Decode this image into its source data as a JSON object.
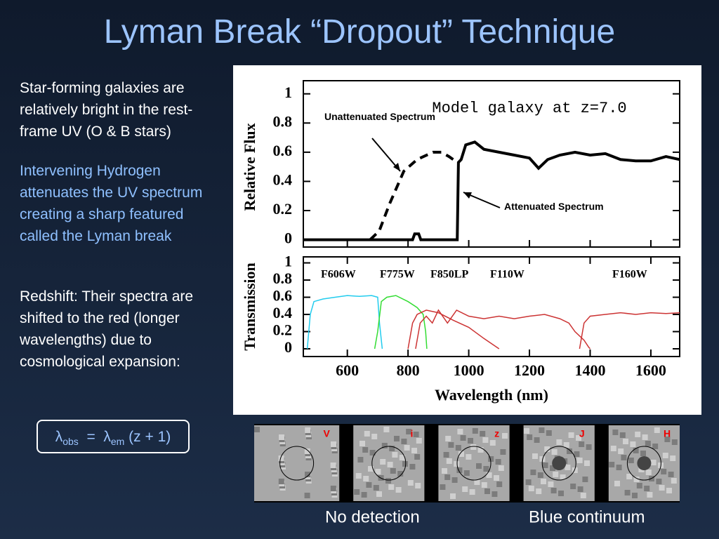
{
  "title": "Lyman Break “Dropout” Technique",
  "paragraphs": [
    "Star-forming galaxies are relatively bright in the rest-frame UV (O & B stars)",
    "Intervening Hydrogen attenuates the UV spectrum creating a sharp featured called the Lyman break",
    "Redshift:  Their spectra are shifted to the red (longer wavelengths) due to cosmological expansion:"
  ],
  "equation": [
    "λ",
    "obs",
    "  =  λ",
    "em",
    " (z + 1)"
  ],
  "chart_data": [
    {
      "type": "line",
      "title": "Model galaxy at z=7.0",
      "ylabel": "Relative Flux",
      "xlim": [
        455,
        1695
      ],
      "ylim": [
        -0.05,
        1.09
      ],
      "yticks": [
        0,
        0.2,
        0.4,
        0.6,
        0.8,
        1
      ],
      "annotations": [
        "Unattenuated Spectrum",
        "Attenuated Spectrum"
      ],
      "series": [
        {
          "color": "#000000",
          "dashed": false,
          "x": [
            455,
            815,
            822,
            835,
            842,
            962,
            966,
            975,
            990,
            1020,
            1050,
            1100,
            1150,
            1200,
            1230,
            1260,
            1300,
            1350,
            1400,
            1450,
            1500,
            1550,
            1600,
            1650,
            1695
          ],
          "values": [
            0,
            0,
            0.04,
            0.04,
            0,
            0,
            0.53,
            0.55,
            0.65,
            0.67,
            0.62,
            0.6,
            0.58,
            0.56,
            0.49,
            0.55,
            0.58,
            0.6,
            0.58,
            0.59,
            0.55,
            0.54,
            0.54,
            0.57,
            0.55
          ]
        },
        {
          "color": "#000000",
          "dashed": true,
          "x": [
            675,
            705,
            740,
            786,
            830,
            882,
            910,
            935,
            962
          ],
          "values": [
            0,
            0.06,
            0.25,
            0.47,
            0.55,
            0.6,
            0.6,
            0.57,
            0.53
          ]
        }
      ]
    },
    {
      "type": "line",
      "ylabel": "Transmission",
      "xlabel": "Wavelength (nm)",
      "xlim": [
        455,
        1695
      ],
      "xticks": [
        600,
        800,
        1000,
        1200,
        1400,
        1600
      ],
      "ylim": [
        -0.09,
        1.07
      ],
      "yticks": [
        0,
        0.2,
        0.4,
        0.6,
        0.8,
        1
      ],
      "series": [
        {
          "name": "F606W",
          "color": "#22ccee",
          "x": [
            468,
            478,
            490,
            520,
            560,
            600,
            640,
            680,
            700,
            706,
            715
          ],
          "values": [
            0,
            0.4,
            0.55,
            0.58,
            0.6,
            0.62,
            0.61,
            0.62,
            0.6,
            0.3,
            0
          ]
        },
        {
          "name": "F775W",
          "color": "#33dd33",
          "x": [
            690,
            700,
            712,
            730,
            760,
            800,
            830,
            850,
            858,
            862
          ],
          "values": [
            0,
            0.2,
            0.55,
            0.6,
            0.62,
            0.55,
            0.48,
            0.4,
            0.2,
            0
          ]
        },
        {
          "name": "F850LP",
          "color": "#cc3333",
          "x": [
            800,
            815,
            830,
            860,
            900,
            950,
            1000,
            1050,
            1100
          ],
          "values": [
            0,
            0.3,
            0.4,
            0.45,
            0.42,
            0.33,
            0.25,
            0.12,
            0
          ]
        },
        {
          "name": "F110W",
          "color": "#cc3333",
          "x": [
            825,
            840,
            860,
            880,
            900,
            930,
            960,
            1000,
            1050,
            1100,
            1150,
            1200,
            1250,
            1300,
            1330,
            1350,
            1380,
            1395,
            1400
          ],
          "values": [
            0,
            0.3,
            0.38,
            0.3,
            0.45,
            0.3,
            0.45,
            0.38,
            0.35,
            0.38,
            0.35,
            0.38,
            0.4,
            0.35,
            0.3,
            0.2,
            0.1,
            0.02,
            0
          ]
        },
        {
          "name": "F160W",
          "color": "#cc3333",
          "x": [
            1365,
            1380,
            1400,
            1450,
            1500,
            1550,
            1600,
            1650,
            1695
          ],
          "values": [
            0,
            0.3,
            0.38,
            0.4,
            0.42,
            0.4,
            0.42,
            0.41,
            0.42
          ]
        }
      ]
    }
  ],
  "images": {
    "labels": [
      "V",
      "i",
      "z",
      "J",
      "H"
    ],
    "captions": [
      "No detection",
      "Blue continuum"
    ]
  }
}
